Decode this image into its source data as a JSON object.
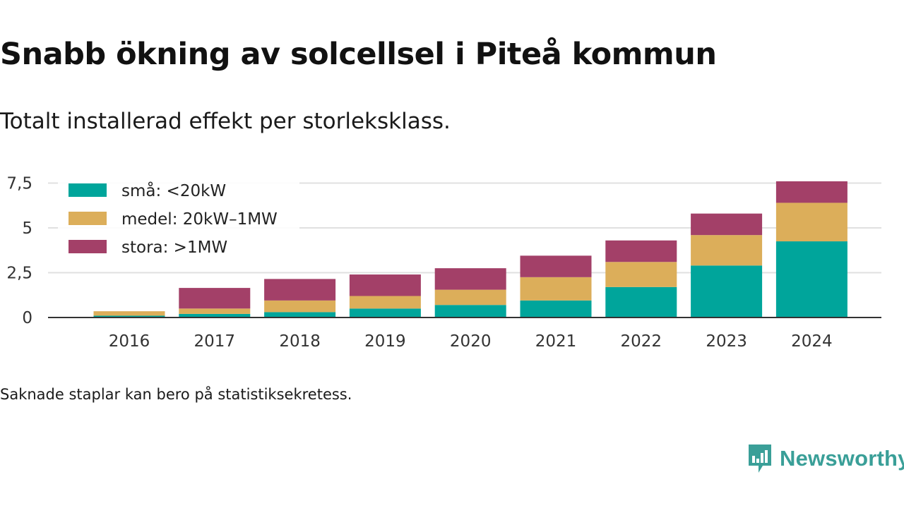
{
  "title": "Snabb ökning av solcellsel i Piteå kommun",
  "subtitle": "Totalt installerad effekt per storleksklass.",
  "footnote": "Saknade staplar kan bero på statistiksekretess.",
  "brand": {
    "name": "Newsworthy",
    "color": "#3a9f98",
    "icon": "newsworthy-chart-bubble-icon"
  },
  "chart_data": {
    "type": "bar",
    "stacked": true,
    "categories": [
      "2016",
      "2017",
      "2018",
      "2019",
      "2020",
      "2021",
      "2022",
      "2023",
      "2024"
    ],
    "series": [
      {
        "name": "små: <20kW",
        "color": "#00a59b",
        "values": [
          0.1,
          0.2,
          0.3,
          0.5,
          0.7,
          0.95,
          1.7,
          2.9,
          4.25
        ]
      },
      {
        "name": "medel: 20kW–1MW",
        "color": "#dcae5a",
        "values": [
          0.25,
          0.3,
          0.65,
          0.7,
          0.85,
          1.3,
          1.4,
          1.7,
          2.15
        ]
      },
      {
        "name": "stora: >1MW",
        "color": "#a34068",
        "values": [
          0.0,
          1.15,
          1.2,
          1.2,
          1.2,
          1.2,
          1.2,
          1.2,
          1.2
        ]
      }
    ],
    "yticks": [
      0,
      2.5,
      5,
      7.5
    ],
    "ytick_labels": [
      "0",
      "2,5",
      "5",
      "7,5"
    ],
    "ylim": [
      0,
      7.8
    ],
    "grid": true,
    "legend": "top-left",
    "xlabel": "",
    "ylabel": ""
  }
}
